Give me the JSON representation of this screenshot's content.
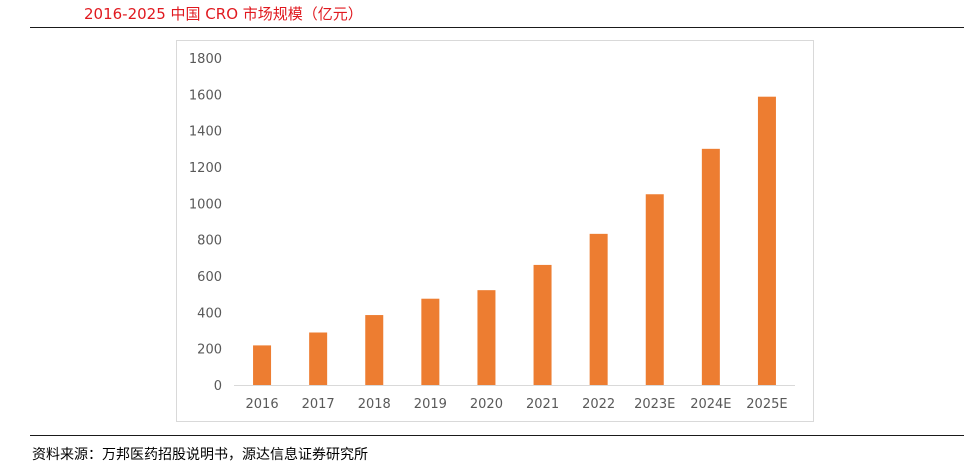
{
  "header": {
    "title": "2016-2025 中国 CRO 市场规模（亿元）"
  },
  "footer": {
    "source": "资料来源：万邦医药招股说明书，源达信息证券研究所"
  },
  "colors": {
    "title": "#e0191f",
    "bar": "#ed7d31",
    "axis_text": "#595959"
  },
  "chart_data": {
    "type": "bar",
    "title": "2016-2025 中国 CRO 市场规模（亿元）",
    "xlabel": "",
    "ylabel": "",
    "categories": [
      "2016",
      "2017",
      "2018",
      "2019",
      "2020",
      "2021",
      "2022",
      "2023E",
      "2024E",
      "2025E"
    ],
    "values": [
      218,
      289,
      385,
      475,
      522,
      661,
      832,
      1050,
      1300,
      1587
    ],
    "ylim": [
      0,
      1800
    ],
    "yticks": [
      0,
      200,
      400,
      600,
      800,
      1000,
      1200,
      1400,
      1600,
      1800
    ],
    "grid": false,
    "legend": "none"
  }
}
